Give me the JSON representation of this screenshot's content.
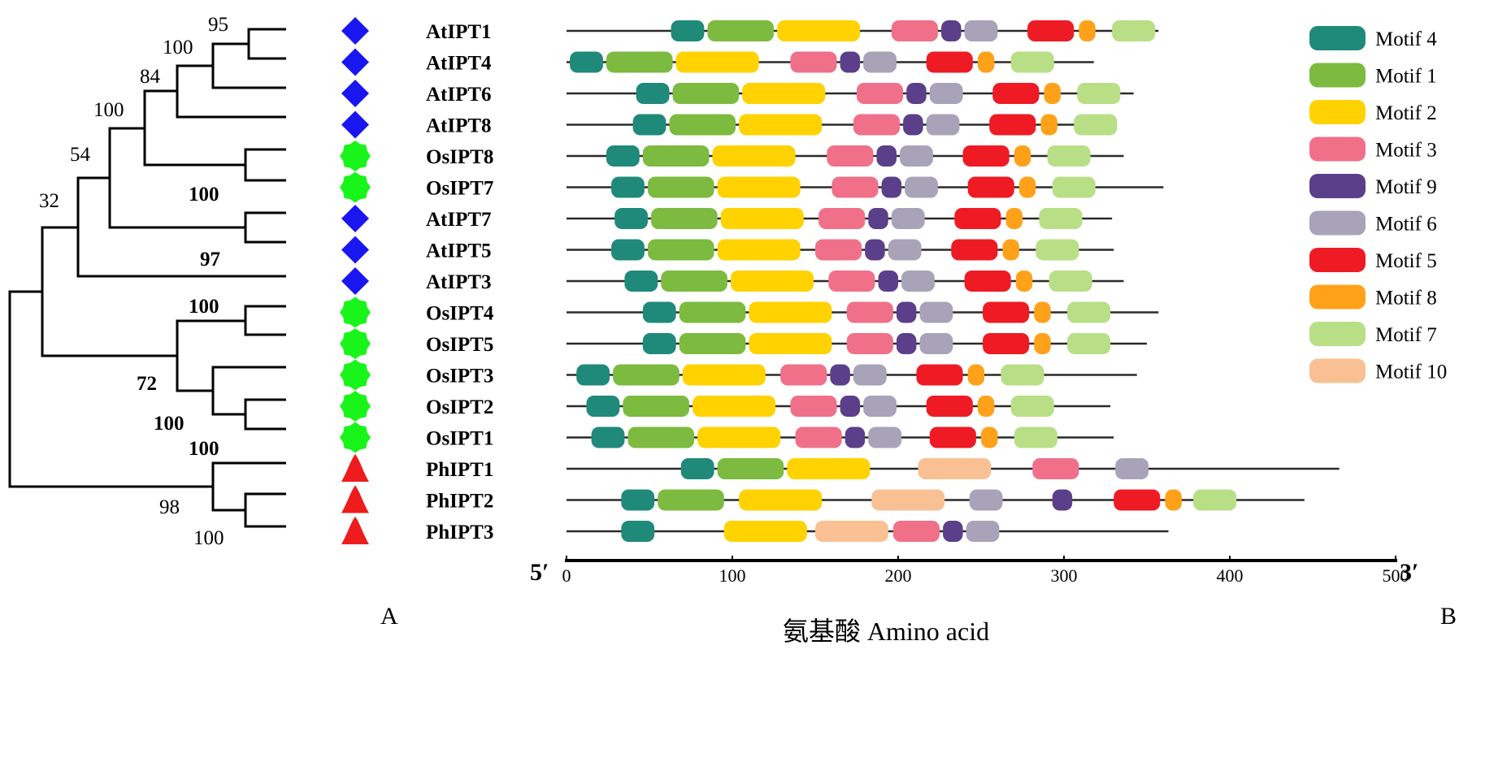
{
  "colors": {
    "motif_4": "#1f8a7a",
    "motif_1": "#7cbb3f",
    "motif_2": "#ffd200",
    "motif_3": "#f0708a",
    "motif_9": "#5b3f8a",
    "motif_6": "#a8a3b8",
    "motif_5": "#ee1b24",
    "motif_8": "#ffa21a",
    "motif_7": "#b8df86",
    "motif_10": "#f9c193",
    "at_marker": "#1a16f0",
    "os_marker": "#19f51b",
    "ph_marker": "#ee1c1c"
  },
  "marker_shapes": {
    "At": "diamond",
    "Os": "green-blob",
    "Ph": "triangle"
  },
  "tree": {
    "bootstrap": [
      {
        "id": "b1",
        "value": "95",
        "bold": false
      },
      {
        "id": "b2",
        "value": "100",
        "bold": false
      },
      {
        "id": "b3",
        "value": "84",
        "bold": false
      },
      {
        "id": "b4",
        "value": "100",
        "bold": false
      },
      {
        "id": "b5",
        "value": "54",
        "bold": false
      },
      {
        "id": "b6",
        "value": "100",
        "bold": true
      },
      {
        "id": "b7",
        "value": "32",
        "bold": false
      },
      {
        "id": "b8",
        "value": "97",
        "bold": true
      },
      {
        "id": "b9",
        "value": "100",
        "bold": true
      },
      {
        "id": "b10",
        "value": "72",
        "bold": true
      },
      {
        "id": "b11",
        "value": "100",
        "bold": true
      },
      {
        "id": "b12",
        "value": "100",
        "bold": true
      },
      {
        "id": "b13",
        "value": "98",
        "bold": false
      },
      {
        "id": "b14",
        "value": "100",
        "bold": false
      }
    ]
  },
  "genes": [
    {
      "name": "AtIPT1",
      "species": "At",
      "length": 357,
      "motifs": [
        [
          "4",
          63,
          83
        ],
        [
          "1",
          85,
          125
        ],
        [
          "2",
          127,
          177
        ],
        [
          "3",
          196,
          224
        ],
        [
          "9",
          226,
          238
        ],
        [
          "6",
          240,
          260
        ],
        [
          "5",
          278,
          306
        ],
        [
          "8",
          309,
          319
        ],
        [
          "7",
          329,
          355
        ]
      ]
    },
    {
      "name": "AtIPT4",
      "species": "At",
      "length": 318,
      "motifs": [
        [
          "4",
          2,
          22
        ],
        [
          "1",
          24,
          64
        ],
        [
          "2",
          66,
          116
        ],
        [
          "3",
          135,
          163
        ],
        [
          "9",
          165,
          177
        ],
        [
          "6",
          179,
          199
        ],
        [
          "5",
          217,
          245
        ],
        [
          "8",
          248,
          258
        ],
        [
          "7",
          268,
          294
        ]
      ]
    },
    {
      "name": "AtIPT6",
      "species": "At",
      "length": 342,
      "motifs": [
        [
          "4",
          42,
          62
        ],
        [
          "1",
          64,
          104
        ],
        [
          "2",
          106,
          156
        ],
        [
          "3",
          175,
          203
        ],
        [
          "9",
          205,
          217
        ],
        [
          "6",
          219,
          239
        ],
        [
          "5",
          257,
          285
        ],
        [
          "8",
          288,
          298
        ],
        [
          "7",
          308,
          334
        ]
      ]
    },
    {
      "name": "AtIPT8",
      "species": "At",
      "length": 330,
      "motifs": [
        [
          "4",
          40,
          60
        ],
        [
          "1",
          62,
          102
        ],
        [
          "2",
          104,
          154
        ],
        [
          "3",
          173,
          201
        ],
        [
          "9",
          203,
          215
        ],
        [
          "6",
          217,
          237
        ],
        [
          "5",
          255,
          283
        ],
        [
          "8",
          286,
          296
        ],
        [
          "7",
          306,
          332
        ]
      ]
    },
    {
      "name": "OsIPT8",
      "species": "Os",
      "length": 336,
      "motifs": [
        [
          "4",
          24,
          44
        ],
        [
          "1",
          46,
          86
        ],
        [
          "2",
          88,
          138
        ],
        [
          "3",
          157,
          185
        ],
        [
          "9",
          187,
          199
        ],
        [
          "6",
          201,
          221
        ],
        [
          "5",
          239,
          267
        ],
        [
          "8",
          270,
          280
        ],
        [
          "7",
          290,
          316
        ]
      ]
    },
    {
      "name": "OsIPT7",
      "species": "Os",
      "length": 360,
      "motifs": [
        [
          "4",
          27,
          47
        ],
        [
          "1",
          49,
          89
        ],
        [
          "2",
          91,
          141
        ],
        [
          "3",
          160,
          188
        ],
        [
          "9",
          190,
          202
        ],
        [
          "6",
          204,
          224
        ],
        [
          "5",
          242,
          270
        ],
        [
          "8",
          273,
          283
        ],
        [
          "7",
          293,
          319
        ]
      ]
    },
    {
      "name": "AtIPT7",
      "species": "At",
      "length": 329,
      "motifs": [
        [
          "4",
          29,
          49
        ],
        [
          "1",
          51,
          91
        ],
        [
          "2",
          93,
          143
        ],
        [
          "3",
          152,
          180
        ],
        [
          "9",
          182,
          194
        ],
        [
          "6",
          196,
          216
        ],
        [
          "5",
          234,
          262
        ],
        [
          "8",
          265,
          275
        ],
        [
          "7",
          285,
          311
        ]
      ]
    },
    {
      "name": "AtIPT5",
      "species": "At",
      "length": 330,
      "motifs": [
        [
          "4",
          27,
          47
        ],
        [
          "1",
          49,
          89
        ],
        [
          "2",
          91,
          141
        ],
        [
          "3",
          150,
          178
        ],
        [
          "9",
          180,
          192
        ],
        [
          "6",
          194,
          214
        ],
        [
          "5",
          232,
          260
        ],
        [
          "8",
          263,
          273
        ],
        [
          "7",
          283,
          309
        ]
      ]
    },
    {
      "name": "AtIPT3",
      "species": "At",
      "length": 336,
      "motifs": [
        [
          "4",
          35,
          55
        ],
        [
          "1",
          57,
          97
        ],
        [
          "2",
          99,
          149
        ],
        [
          "3",
          158,
          186
        ],
        [
          "9",
          188,
          200
        ],
        [
          "6",
          202,
          222
        ],
        [
          "5",
          240,
          268
        ],
        [
          "8",
          271,
          281
        ],
        [
          "7",
          291,
          317
        ]
      ]
    },
    {
      "name": "OsIPT4",
      "species": "Os",
      "length": 357,
      "motifs": [
        [
          "4",
          46,
          66
        ],
        [
          "1",
          68,
          108
        ],
        [
          "2",
          110,
          160
        ],
        [
          "3",
          169,
          197
        ],
        [
          "9",
          199,
          211
        ],
        [
          "6",
          213,
          233
        ],
        [
          "5",
          251,
          279
        ],
        [
          "8",
          282,
          292
        ],
        [
          "7",
          302,
          328
        ]
      ]
    },
    {
      "name": "OsIPT5",
      "species": "Os",
      "length": 350,
      "motifs": [
        [
          "4",
          46,
          66
        ],
        [
          "1",
          68,
          108
        ],
        [
          "2",
          110,
          160
        ],
        [
          "3",
          169,
          197
        ],
        [
          "9",
          199,
          211
        ],
        [
          "6",
          213,
          233
        ],
        [
          "5",
          251,
          279
        ],
        [
          "8",
          282,
          292
        ],
        [
          "7",
          302,
          328
        ]
      ]
    },
    {
      "name": "OsIPT3",
      "species": "Os",
      "length": 344,
      "motifs": [
        [
          "4",
          6,
          26
        ],
        [
          "1",
          28,
          68
        ],
        [
          "2",
          70,
          120
        ],
        [
          "3",
          129,
          157
        ],
        [
          "9",
          159,
          171
        ],
        [
          "6",
          173,
          193
        ],
        [
          "5",
          211,
          239
        ],
        [
          "8",
          242,
          252
        ],
        [
          "7",
          262,
          288
        ]
      ]
    },
    {
      "name": "OsIPT2",
      "species": "Os",
      "length": 328,
      "motifs": [
        [
          "4",
          12,
          32
        ],
        [
          "1",
          34,
          74
        ],
        [
          "2",
          76,
          126
        ],
        [
          "3",
          135,
          163
        ],
        [
          "9",
          165,
          177
        ],
        [
          "6",
          179,
          199
        ],
        [
          "5",
          217,
          245
        ],
        [
          "8",
          248,
          258
        ],
        [
          "7",
          268,
          294
        ]
      ]
    },
    {
      "name": "OsIPT1",
      "species": "Os",
      "length": 330,
      "motifs": [
        [
          "4",
          15,
          35
        ],
        [
          "1",
          37,
          77
        ],
        [
          "2",
          79,
          129
        ],
        [
          "3",
          138,
          166
        ],
        [
          "9",
          168,
          180
        ],
        [
          "6",
          182,
          202
        ],
        [
          "5",
          219,
          247
        ],
        [
          "8",
          250,
          260
        ],
        [
          "7",
          270,
          296
        ]
      ]
    },
    {
      "name": "PhIPT1",
      "species": "Ph",
      "length": 466,
      "motifs": [
        [
          "4",
          69,
          89
        ],
        [
          "1",
          91,
          131
        ],
        [
          "2",
          133,
          183
        ],
        [
          "10",
          212,
          256
        ],
        [
          "3",
          281,
          309
        ],
        [
          "6",
          331,
          351
        ]
      ]
    },
    {
      "name": "PhIPT2",
      "species": "Ph",
      "length": 445,
      "motifs": [
        [
          "4",
          33,
          53
        ],
        [
          "1",
          55,
          95
        ],
        [
          "2",
          104,
          154
        ],
        [
          "10",
          184,
          228
        ],
        [
          "6",
          243,
          263
        ],
        [
          "9",
          293,
          305
        ],
        [
          "5",
          330,
          358
        ],
        [
          "8",
          361,
          371
        ],
        [
          "7",
          378,
          404
        ]
      ]
    },
    {
      "name": "PhIPT3",
      "species": "Ph",
      "length": 363,
      "motifs": [
        [
          "4",
          33,
          53
        ],
        [
          "2",
          95,
          145
        ],
        [
          "10",
          150,
          194
        ],
        [
          "3",
          197,
          225
        ],
        [
          "9",
          227,
          239
        ],
        [
          "6",
          241,
          261
        ]
      ]
    }
  ],
  "axis": {
    "min": 0,
    "max": 500,
    "ticks": [
      "0",
      "100",
      "200",
      "300",
      "400",
      "500"
    ],
    "left_end": "5′",
    "right_end": "3′",
    "label": "氨基酸  Amino acid"
  },
  "legend": [
    {
      "key": "4",
      "label": "Motif 4"
    },
    {
      "key": "1",
      "label": "Motif 1"
    },
    {
      "key": "2",
      "label": "Motif 2"
    },
    {
      "key": "3",
      "label": "Motif 3"
    },
    {
      "key": "9",
      "label": "Motif 9"
    },
    {
      "key": "6",
      "label": "Motif 6"
    },
    {
      "key": "5",
      "label": "Motif 5"
    },
    {
      "key": "8",
      "label": "Motif 8"
    },
    {
      "key": "7",
      "label": "Motif 7"
    },
    {
      "key": "10",
      "label": "Motif 10"
    }
  ],
  "panel_labels": {
    "left": "A",
    "right": "B"
  }
}
